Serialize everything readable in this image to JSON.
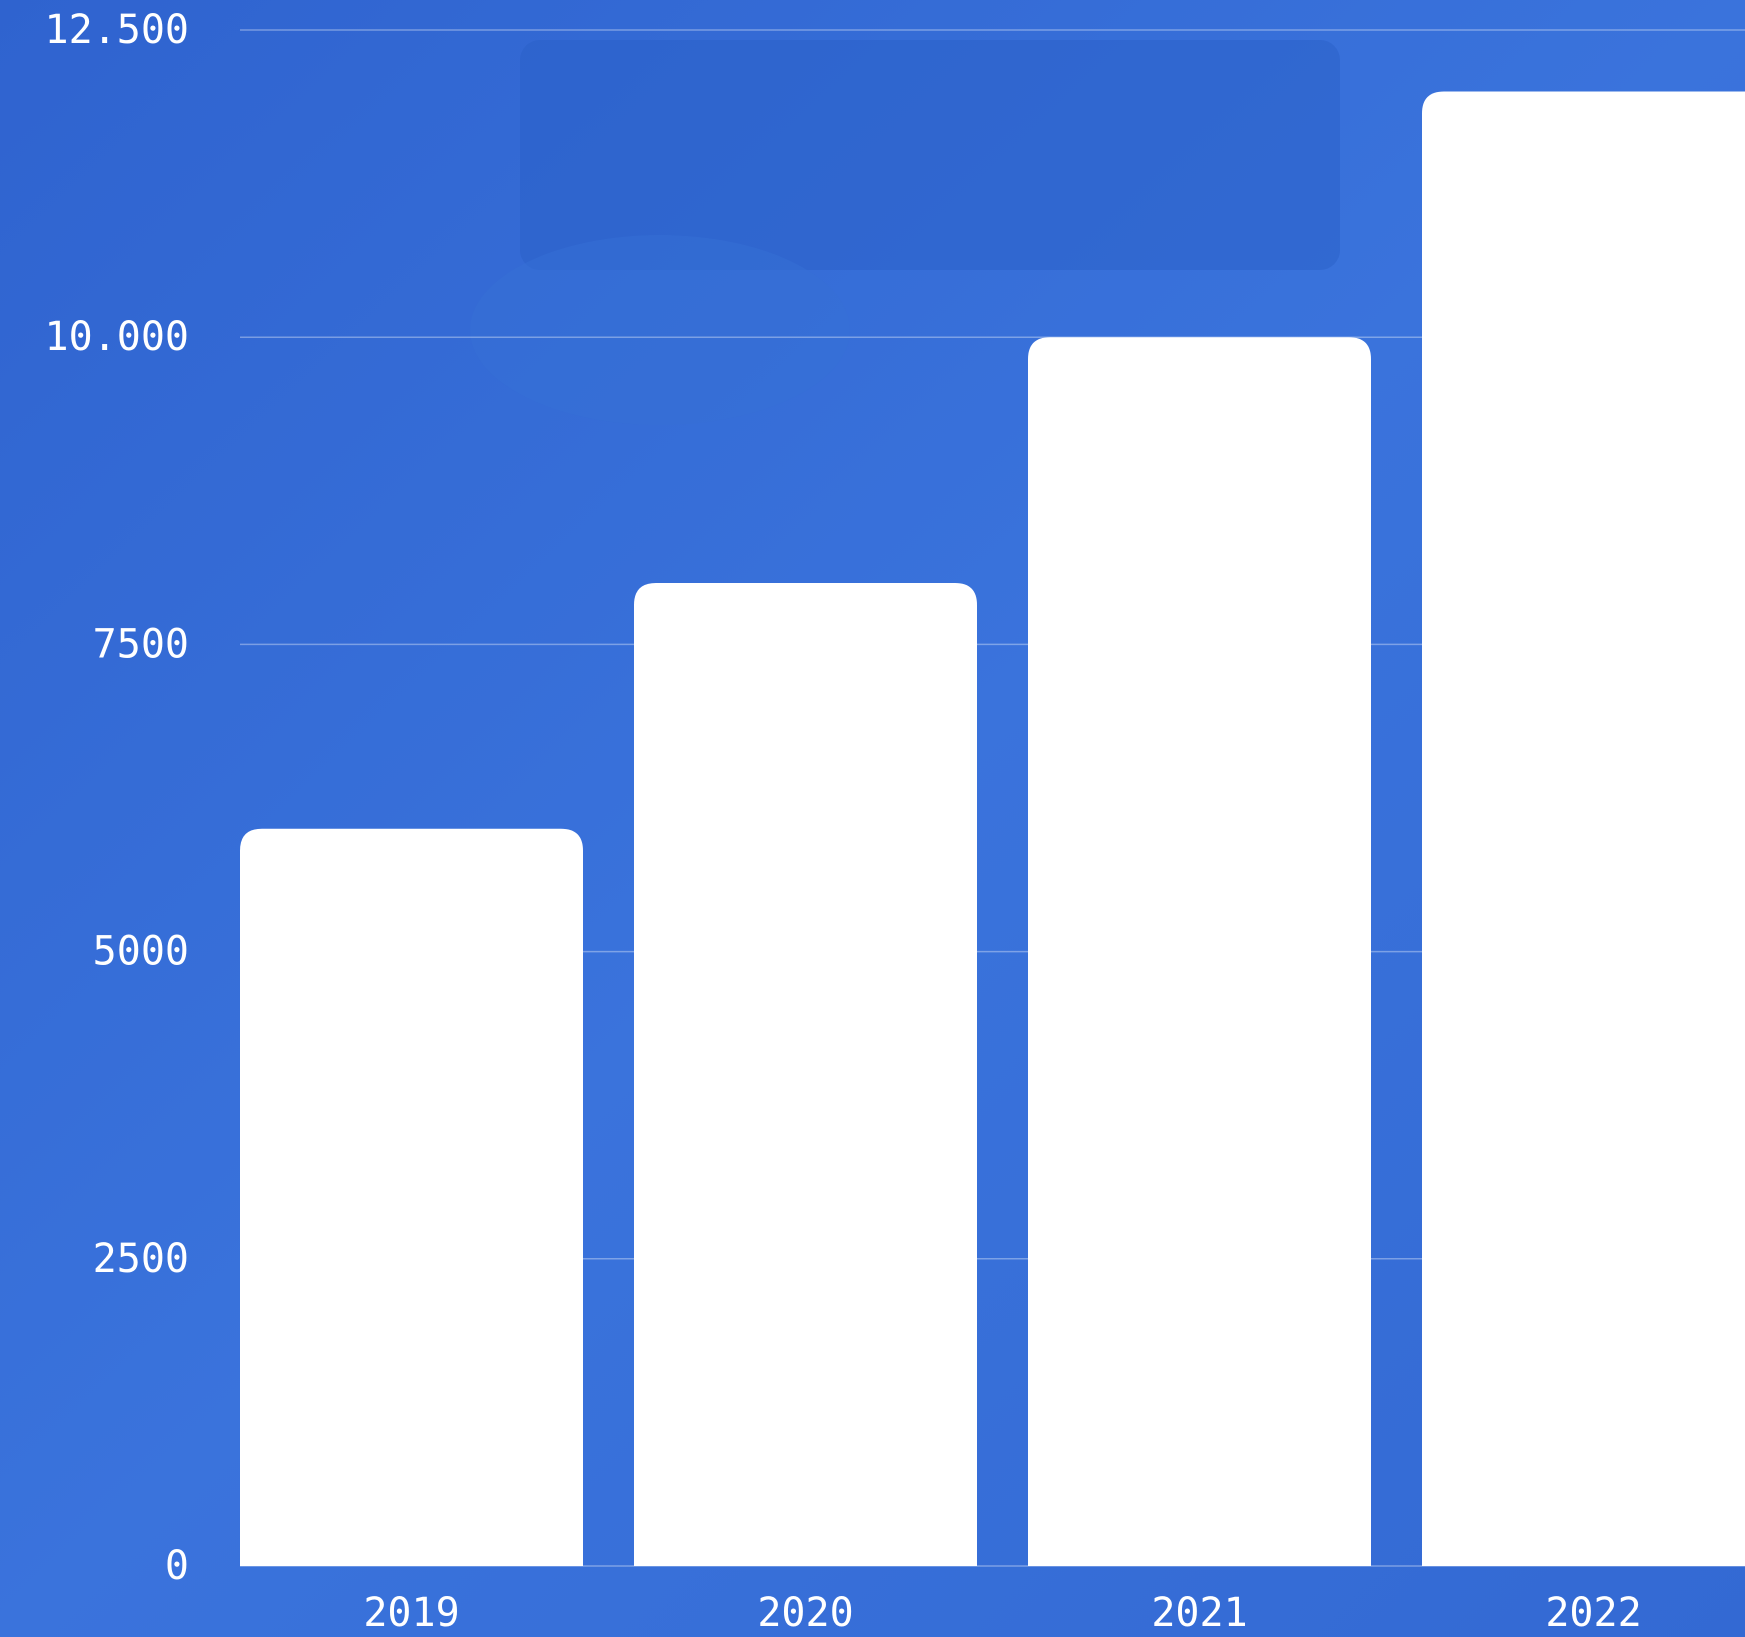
{
  "chart_data": {
    "type": "bar",
    "categories": [
      "2019",
      "2020",
      "2021",
      "2022"
    ],
    "values": [
      6000,
      8000,
      10000,
      12000
    ],
    "color": "#ffffff",
    "ylim": [
      0,
      12500
    ],
    "yticks": [
      0,
      2500,
      5000,
      7500,
      {
        "value": 10000,
        "label": "10.000"
      },
      {
        "value": 12500,
        "label": "12.500"
      }
    ],
    "grid": true
  }
}
